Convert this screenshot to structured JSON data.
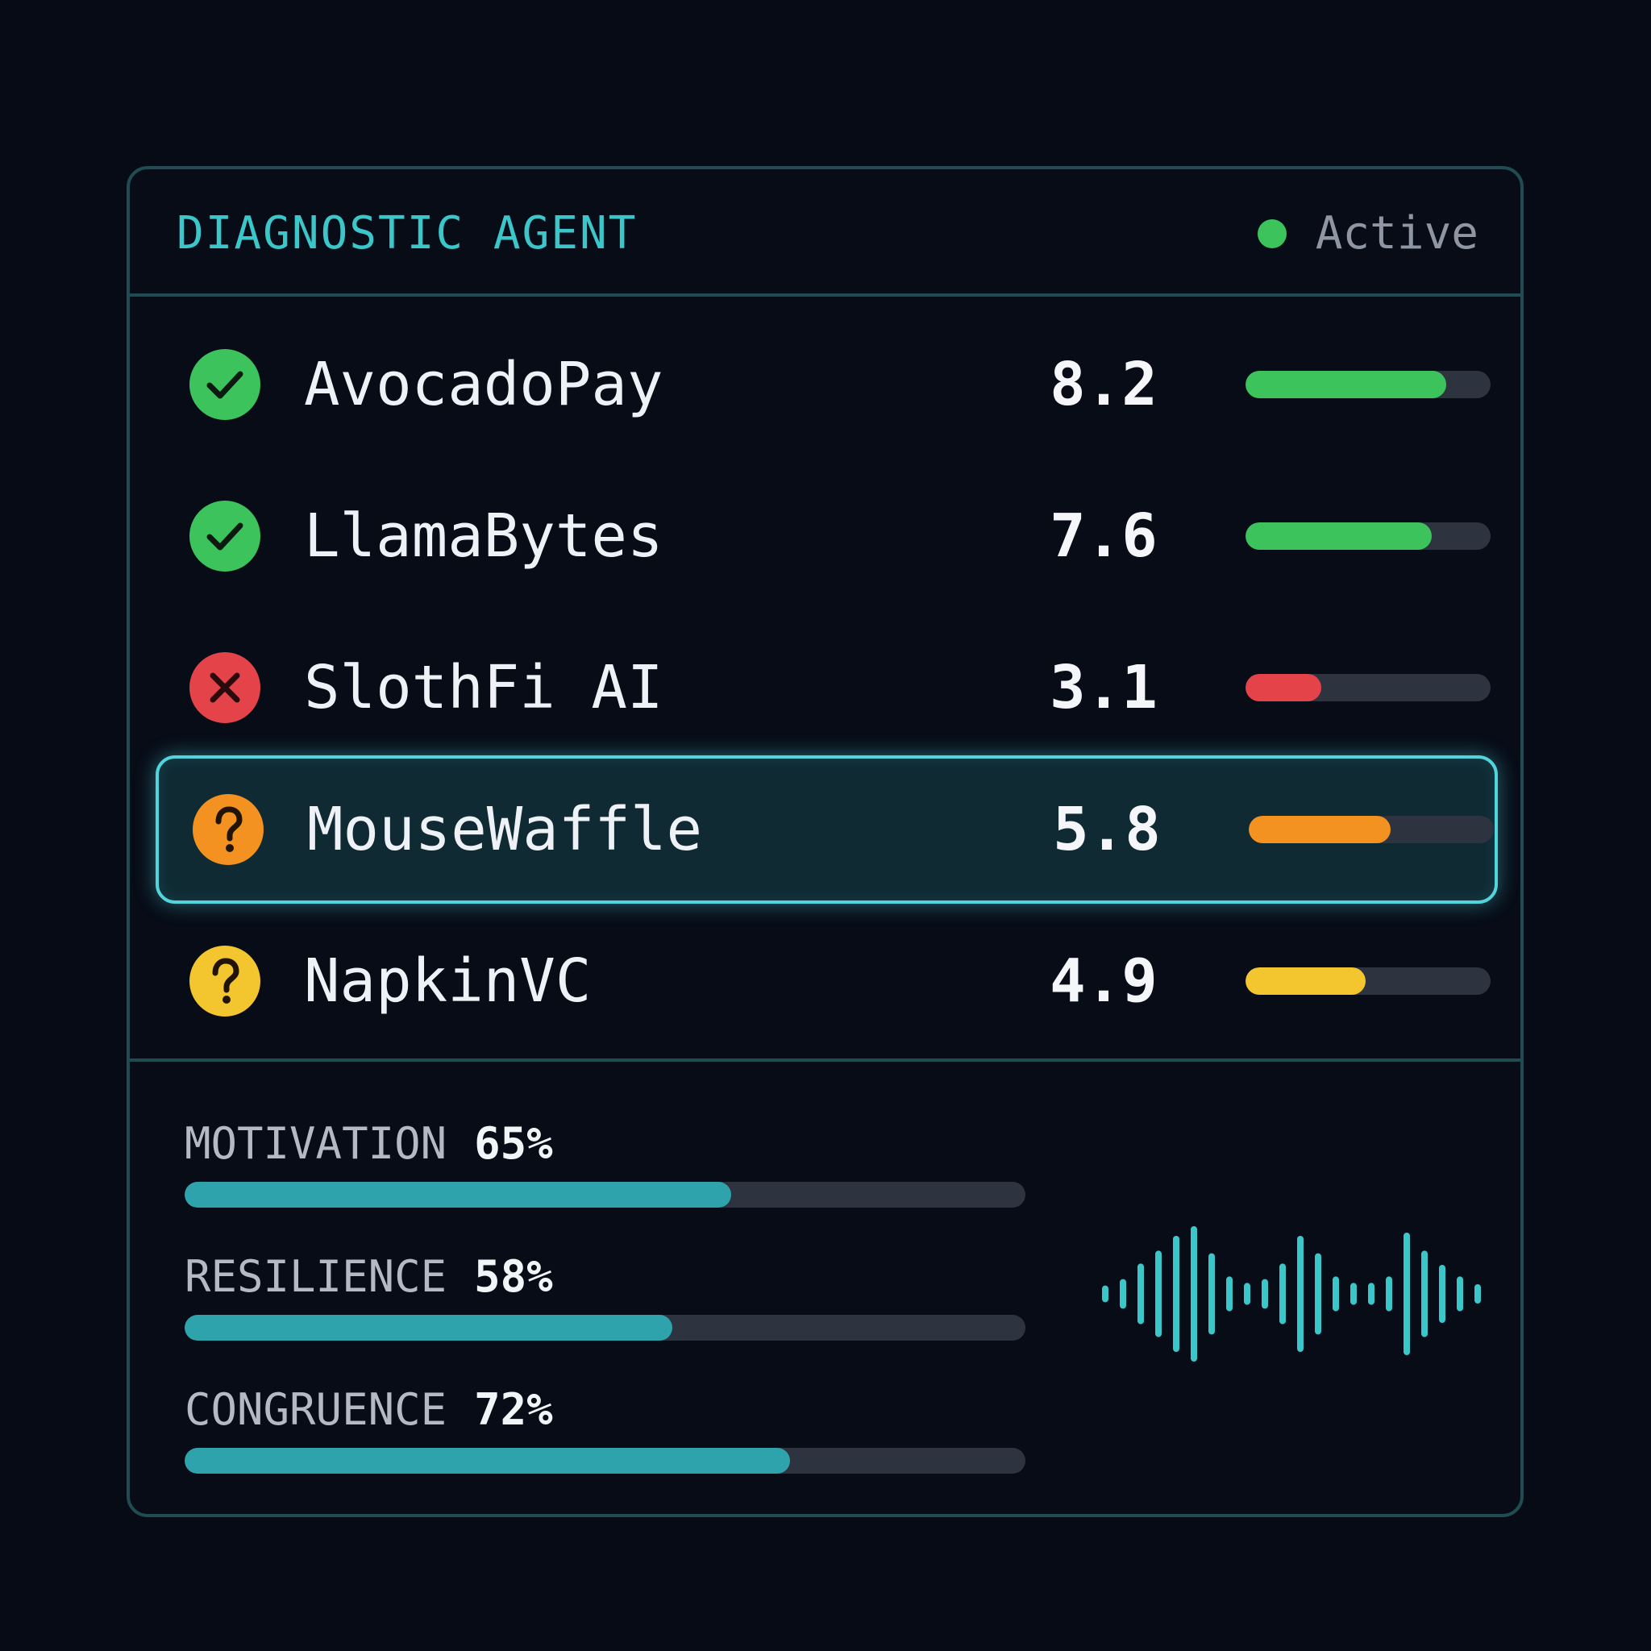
{
  "header": {
    "title": "DIAGNOSTIC AGENT",
    "status_label": "Active",
    "status_color": "#3cc35c"
  },
  "rows": [
    {
      "name": "AvocadoPay",
      "score": "8.2",
      "score_value": 8.2,
      "status": "pass",
      "icon": "check-circle-icon",
      "color": "#3cc35c",
      "selected": false
    },
    {
      "name": "LlamaBytes",
      "score": "7.6",
      "score_value": 7.6,
      "status": "pass",
      "icon": "check-circle-icon",
      "color": "#3cc35c",
      "selected": false
    },
    {
      "name": "SlothFi AI",
      "score": "3.1",
      "score_value": 3.1,
      "status": "fail",
      "icon": "x-circle-icon",
      "color": "#e5434a",
      "selected": false
    },
    {
      "name": "MouseWaffle",
      "score": "5.8",
      "score_value": 5.8,
      "status": "unknown",
      "icon": "question-circle-icon",
      "color": "#f39220",
      "selected": true
    },
    {
      "name": "NapkinVC",
      "score": "4.9",
      "score_value": 4.9,
      "status": "unknown",
      "icon": "question-circle-icon",
      "color": "#f3c630",
      "selected": false
    }
  ],
  "score_max": 10,
  "stats": [
    {
      "label": "MOTIVATION",
      "value": "65%",
      "fraction": 0.65
    },
    {
      "label": "RESILIENCE",
      "value": "58%",
      "fraction": 0.58
    },
    {
      "label": "CONGRUENCE",
      "value": "72%",
      "fraction": 0.72
    }
  ],
  "stat_bar_color": "#2fa3ab",
  "waveform": {
    "icon": "audio-waveform-icon",
    "color": "#3bc6c9",
    "levels": [
      0.08,
      0.18,
      0.42,
      0.62,
      0.85,
      1.0,
      0.58,
      0.22,
      0.12,
      0.18,
      0.42,
      0.85,
      0.58,
      0.22,
      0.12,
      0.12,
      0.22,
      0.9,
      0.62,
      0.4,
      0.22,
      0.1
    ]
  }
}
